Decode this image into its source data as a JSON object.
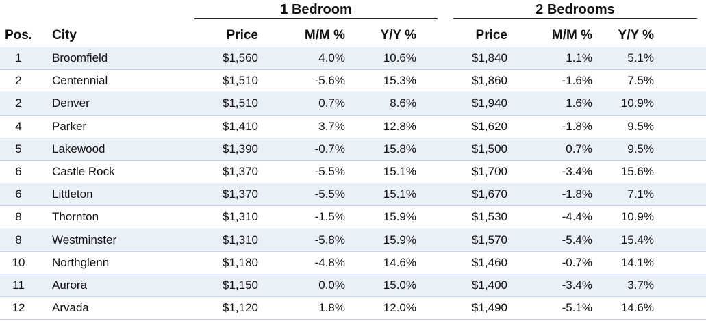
{
  "chart_data": {
    "type": "table",
    "groups": [
      "1 Bedroom",
      "2 Bedrooms"
    ],
    "columns": {
      "pos": "Pos.",
      "city": "City",
      "price": "Price",
      "mm": "M/M %",
      "yy": "Y/Y %"
    },
    "rows": [
      {
        "pos": "1",
        "city": "Broomfield",
        "p1": "$1,560",
        "mm1": "4.0%",
        "yy1": "10.6%",
        "p2": "$1,840",
        "mm2": "1.1%",
        "yy2": "5.1%"
      },
      {
        "pos": "2",
        "city": "Centennial",
        "p1": "$1,510",
        "mm1": "-5.6%",
        "yy1": "15.3%",
        "p2": "$1,860",
        "mm2": "-1.6%",
        "yy2": "7.5%"
      },
      {
        "pos": "2",
        "city": "Denver",
        "p1": "$1,510",
        "mm1": "0.7%",
        "yy1": "8.6%",
        "p2": "$1,940",
        "mm2": "1.6%",
        "yy2": "10.9%"
      },
      {
        "pos": "4",
        "city": "Parker",
        "p1": "$1,410",
        "mm1": "3.7%",
        "yy1": "12.8%",
        "p2": "$1,620",
        "mm2": "-1.8%",
        "yy2": "9.5%"
      },
      {
        "pos": "5",
        "city": "Lakewood",
        "p1": "$1,390",
        "mm1": "-0.7%",
        "yy1": "15.8%",
        "p2": "$1,500",
        "mm2": "0.7%",
        "yy2": "9.5%"
      },
      {
        "pos": "6",
        "city": "Castle Rock",
        "p1": "$1,370",
        "mm1": "-5.5%",
        "yy1": "15.1%",
        "p2": "$1,700",
        "mm2": "-3.4%",
        "yy2": "15.6%"
      },
      {
        "pos": "6",
        "city": "Littleton",
        "p1": "$1,370",
        "mm1": "-5.5%",
        "yy1": "15.1%",
        "p2": "$1,670",
        "mm2": "-1.8%",
        "yy2": "7.1%"
      },
      {
        "pos": "8",
        "city": "Thornton",
        "p1": "$1,310",
        "mm1": "-1.5%",
        "yy1": "15.9%",
        "p2": "$1,530",
        "mm2": "-4.4%",
        "yy2": "10.9%"
      },
      {
        "pos": "8",
        "city": "Westminster",
        "p1": "$1,310",
        "mm1": "-5.8%",
        "yy1": "15.9%",
        "p2": "$1,570",
        "mm2": "-5.4%",
        "yy2": "15.4%"
      },
      {
        "pos": "10",
        "city": "Northglenn",
        "p1": "$1,180",
        "mm1": "-4.8%",
        "yy1": "14.6%",
        "p2": "$1,460",
        "mm2": "-0.7%",
        "yy2": "14.1%"
      },
      {
        "pos": "11",
        "city": "Aurora",
        "p1": "$1,150",
        "mm1": "0.0%",
        "yy1": "15.0%",
        "p2": "$1,400",
        "mm2": "-3.4%",
        "yy2": "3.7%"
      },
      {
        "pos": "12",
        "city": "Arvada",
        "p1": "$1,120",
        "mm1": "1.8%",
        "yy1": "12.0%",
        "p2": "$1,490",
        "mm2": "-5.1%",
        "yy2": "14.6%"
      }
    ],
    "row_band_color": "#eaf0f8",
    "row_rule_color": "#c8d2e6"
  }
}
